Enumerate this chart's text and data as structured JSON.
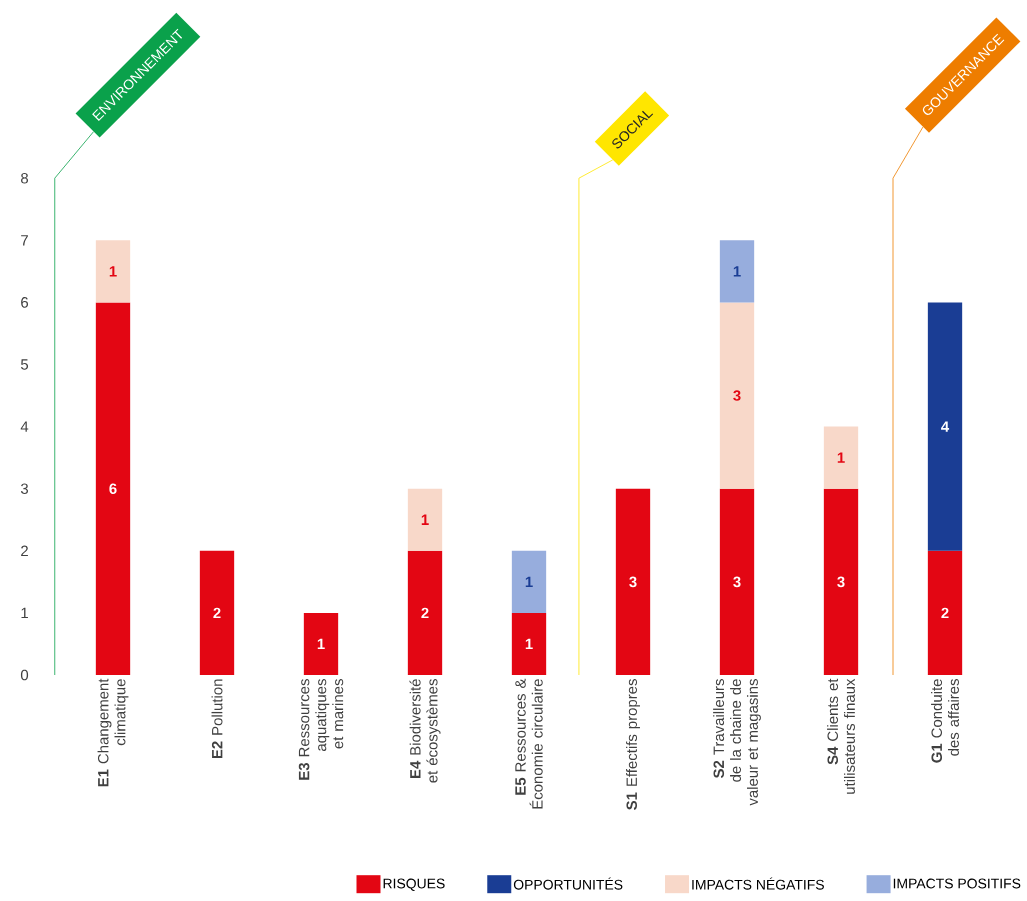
{
  "chart_data": {
    "type": "bar",
    "stacked": true,
    "categories": [
      "**E1** Changement climatique",
      "**E2** Pollution",
      "**E3** Ressources aquatiques et marines",
      "**E4** Biodiversité et écosystèmes",
      "**E5** Ressources & Économie circulaire",
      "**S1** Effectifs propres",
      "**S2** Travailleurs de la chaine de valeur et magasins",
      "**S4** Clients et utilisateurs finaux",
      "**G1** Conduite des affaires"
    ],
    "series": [
      {
        "name": "RISQUES",
        "color": "#e30613",
        "values": [
          6,
          2,
          1,
          2,
          1,
          3,
          3,
          3,
          2
        ]
      },
      {
        "name": "OPPORTUNITÉS",
        "color": "#1a3d94",
        "values": [
          null,
          null,
          null,
          null,
          null,
          null,
          null,
          null,
          4
        ]
      },
      {
        "name": "IMPACTS NÉGATIFS",
        "color": "#f8d8c9",
        "values": [
          1,
          null,
          null,
          1,
          null,
          null,
          3,
          1,
          null
        ]
      },
      {
        "name": "IMPACTS POSITIFS",
        "color": "#97addd",
        "values": [
          null,
          null,
          null,
          null,
          1,
          null,
          1,
          null,
          null
        ]
      }
    ],
    "ylim": [
      0,
      8
    ],
    "yticks": [
      0,
      1,
      2,
      3,
      4,
      5,
      6,
      7,
      8
    ],
    "data_labels": true,
    "legend": "bottom",
    "annotations": [
      "ENVIRONNEMENT",
      "SOCIAL",
      "GOUVERNANCE"
    ]
  }
}
